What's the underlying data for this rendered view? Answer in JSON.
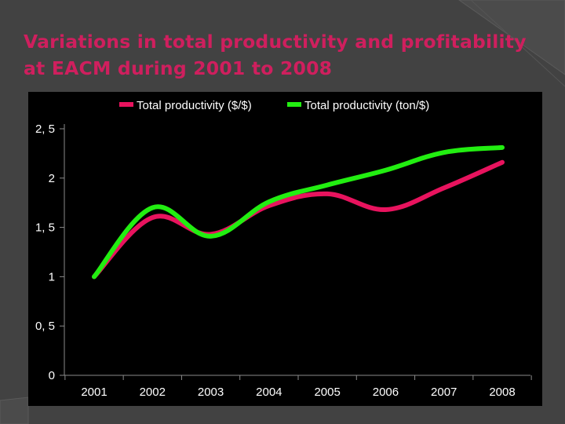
{
  "title": "Variations in total productivity and profitability at EACM during 2001 to 2008",
  "colors": {
    "title": "#cf1f5e",
    "series_1": "#e8135e",
    "series_2": "#22ee11",
    "background": "#424242",
    "plot_background": "#000000"
  },
  "chart_data": {
    "type": "line",
    "smooth": true,
    "x": [
      "2001",
      "2002",
      "2003",
      "2004",
      "2005",
      "2006",
      "2007",
      "2008"
    ],
    "series": [
      {
        "name": "Total productivity ($/$)",
        "color": "#e8135e",
        "values": [
          1.0,
          1.6,
          1.43,
          1.72,
          1.84,
          1.68,
          1.9,
          2.16
        ]
      },
      {
        "name": "Total productivity (ton/$)",
        "color": "#22ee11",
        "values": [
          1.0,
          1.7,
          1.41,
          1.76,
          1.93,
          2.08,
          2.26,
          2.31
        ]
      }
    ],
    "ylim": [
      0,
      2.5
    ],
    "yticks": [
      "0",
      "0, 5",
      "1",
      "1, 5",
      "2",
      "2, 5"
    ],
    "ytick_values": [
      0,
      0.5,
      1,
      1.5,
      2,
      2.5
    ],
    "legend": "top",
    "grid": false
  }
}
